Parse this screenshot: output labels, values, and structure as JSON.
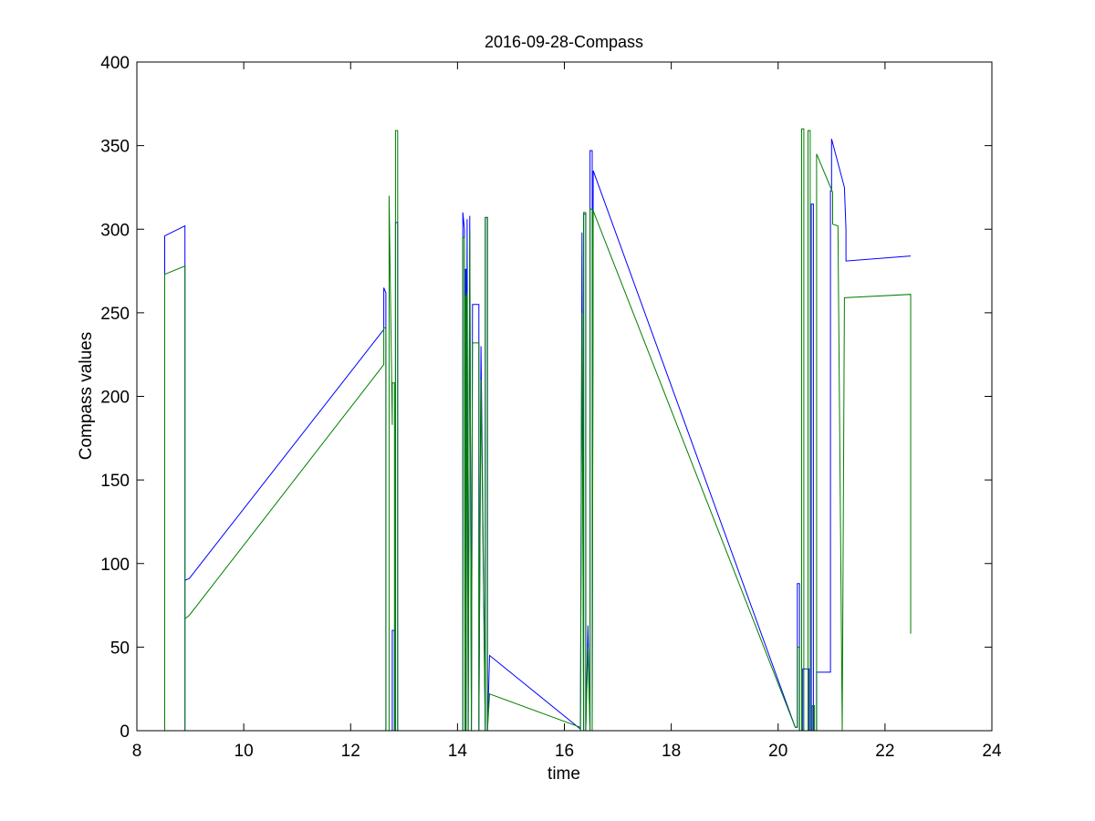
{
  "chart_data": {
    "type": "line",
    "title": "2016-09-28-Compass",
    "xlabel": "time",
    "ylabel": "Compass values",
    "xlim": [
      8,
      24
    ],
    "ylim": [
      0,
      400
    ],
    "xticks": [
      8,
      10,
      12,
      14,
      16,
      18,
      20,
      22,
      24
    ],
    "yticks": [
      0,
      50,
      100,
      150,
      200,
      250,
      300,
      350,
      400
    ],
    "grid": false,
    "legend": "none",
    "series": [
      {
        "color": "#0000ff",
        "x": [
          8.52,
          8.52,
          8.9,
          8.9,
          8.9,
          8.98,
          12.62,
          12.62,
          12.66,
          12.66,
          12.78,
          12.78,
          12.82,
          12.82,
          12.84,
          12.84,
          12.88,
          12.88,
          14.06,
          14.1,
          14.1,
          14.13,
          14.14,
          14.14,
          14.16,
          14.16,
          14.18,
          14.18,
          14.2,
          14.2,
          14.23,
          14.23,
          14.26,
          14.26,
          14.28,
          14.28,
          14.4,
          14.4,
          14.44,
          14.44,
          14.52,
          14.52,
          14.56,
          14.56,
          14.6,
          16.3,
          16.3,
          16.33,
          16.33,
          16.36,
          16.36,
          16.4,
          16.4,
          16.44,
          16.44,
          16.48,
          16.48,
          16.52,
          16.52,
          16.54,
          20.32,
          20.36,
          20.36,
          20.4,
          20.4,
          20.46,
          20.46,
          20.58,
          20.58,
          20.62,
          20.62,
          20.66,
          20.66,
          20.72,
          20.72,
          20.98,
          20.98,
          21.0,
          21.0,
          21.24,
          21.24,
          21.27,
          21.27,
          22.48,
          22.48
        ],
        "y": [
          0,
          296,
          302,
          0,
          90,
          91,
          240,
          265,
          262,
          0,
          0,
          60,
          60,
          0,
          0,
          304,
          304,
          0,
          0,
          0,
          310,
          300,
          0,
          276,
          276,
          0,
          306,
          306,
          0,
          0,
          308,
          308,
          0,
          0,
          255,
          255,
          255,
          0,
          230,
          230,
          0,
          307,
          307,
          0,
          45,
          1,
          0,
          298,
          298,
          0,
          309,
          309,
          0,
          63,
          63,
          0,
          347,
          347,
          0,
          335,
          2,
          2,
          88,
          88,
          0,
          0,
          37,
          37,
          0,
          0,
          315,
          315,
          0,
          0,
          35,
          35,
          323,
          323,
          354,
          325,
          325,
          300,
          281,
          284,
          284
        ]
      },
      {
        "color": "#007f00",
        "x": [
          8.52,
          8.52,
          8.9,
          8.9,
          8.9,
          8.98,
          12.62,
          12.62,
          12.66,
          12.66,
          12.72,
          12.72,
          12.78,
          12.78,
          12.82,
          12.82,
          12.84,
          12.84,
          12.88,
          12.88,
          14.06,
          14.1,
          14.1,
          14.13,
          14.14,
          14.14,
          14.16,
          14.16,
          14.18,
          14.18,
          14.2,
          14.2,
          14.23,
          14.23,
          14.26,
          14.26,
          14.28,
          14.28,
          14.4,
          14.4,
          14.44,
          14.44,
          14.52,
          14.52,
          14.56,
          14.56,
          14.6,
          16.3,
          16.3,
          16.33,
          16.33,
          16.36,
          16.36,
          16.4,
          16.4,
          16.44,
          16.44,
          16.48,
          16.48,
          16.52,
          16.52,
          16.54,
          20.32,
          20.36,
          20.36,
          20.4,
          20.4,
          20.44,
          20.44,
          20.48,
          20.48,
          20.56,
          20.56,
          20.6,
          20.6,
          20.64,
          20.64,
          20.68,
          20.68,
          20.72,
          20.72,
          21.02,
          21.02,
          21.12,
          21.12,
          21.2,
          21.2,
          21.24,
          21.24,
          22.48,
          22.48
        ],
        "y": [
          0,
          273,
          278,
          0,
          67,
          69,
          219,
          241,
          241,
          0,
          0,
          320,
          183,
          208,
          208,
          0,
          0,
          359,
          359,
          0,
          0,
          0,
          295,
          295,
          0,
          260,
          260,
          0,
          262,
          262,
          0,
          0,
          298,
          298,
          0,
          0,
          232,
          232,
          232,
          0,
          210,
          210,
          0,
          307,
          307,
          0,
          22,
          2,
          0,
          250,
          250,
          0,
          310,
          310,
          0,
          50,
          50,
          0,
          312,
          312,
          0,
          311,
          2,
          2,
          50,
          50,
          0,
          0,
          360,
          360,
          0,
          0,
          359,
          359,
          0,
          0,
          15,
          15,
          0,
          0,
          345,
          322,
          303,
          302,
          302,
          0,
          0,
          258,
          259,
          261,
          58
        ]
      }
    ]
  }
}
